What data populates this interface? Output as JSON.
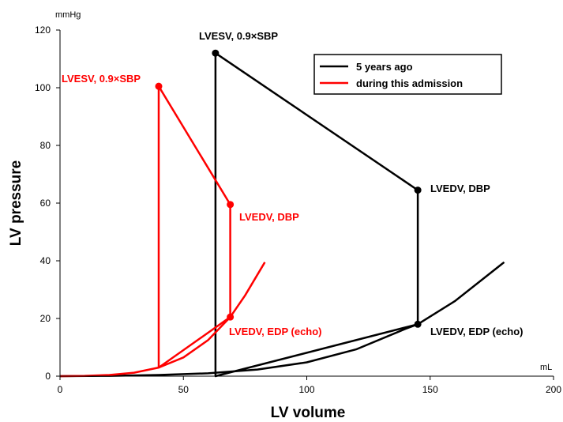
{
  "chart_data": {
    "type": "line",
    "xlabel": "LV volume",
    "ylabel": "LV pressure",
    "x_unit": "mL",
    "y_unit": "mmHg",
    "xlim": [
      0,
      200
    ],
    "ylim": [
      0,
      120
    ],
    "x_ticks": [
      0,
      50,
      100,
      150,
      200
    ],
    "y_ticks": [
      0,
      20,
      40,
      60,
      80,
      100,
      120
    ],
    "grid": false,
    "legend_position": "top-right",
    "series": [
      {
        "name": "5 years ago",
        "color": "#000000",
        "loop": [
          [
            63,
            112
          ],
          [
            145,
            64.5
          ],
          [
            145,
            18
          ],
          [
            63,
            0
          ],
          [
            63,
            112
          ]
        ],
        "points": [
          {
            "x": 63,
            "y": 112,
            "label": "LVESV, 0.9×SBP"
          },
          {
            "x": 145,
            "y": 64.5,
            "label": "LVEDV, DBP"
          },
          {
            "x": 145,
            "y": 18,
            "label": "LVEDV, EDP (echo)"
          }
        ],
        "edpvr": [
          [
            0,
            0
          ],
          [
            20,
            0.1
          ],
          [
            40,
            0.4
          ],
          [
            60,
            1
          ],
          [
            80,
            2.3
          ],
          [
            100,
            4.8
          ],
          [
            120,
            9.3
          ],
          [
            140,
            16.4
          ],
          [
            145,
            18
          ],
          [
            160,
            26
          ],
          [
            180,
            39.5
          ]
        ]
      },
      {
        "name": "during this admission",
        "color": "#ff0000",
        "loop": [
          [
            40,
            100.5
          ],
          [
            69,
            59.5
          ],
          [
            69,
            20.5
          ],
          [
            40,
            3
          ],
          [
            40,
            100.5
          ]
        ],
        "points": [
          {
            "x": 40,
            "y": 100.5,
            "label": "LVESV, 0.9×SBP"
          },
          {
            "x": 69,
            "y": 59.5,
            "label": "LVEDV, DBP"
          },
          {
            "x": 69,
            "y": 20.5,
            "label": "LVEDV, EDP (echo)"
          }
        ],
        "edpvr": [
          [
            0,
            0
          ],
          [
            10,
            0.1
          ],
          [
            20,
            0.4
          ],
          [
            30,
            1.2
          ],
          [
            40,
            3
          ],
          [
            50,
            6.5
          ],
          [
            60,
            12.5
          ],
          [
            69,
            20.5
          ],
          [
            75,
            28
          ],
          [
            83,
            39.5
          ]
        ]
      }
    ]
  }
}
